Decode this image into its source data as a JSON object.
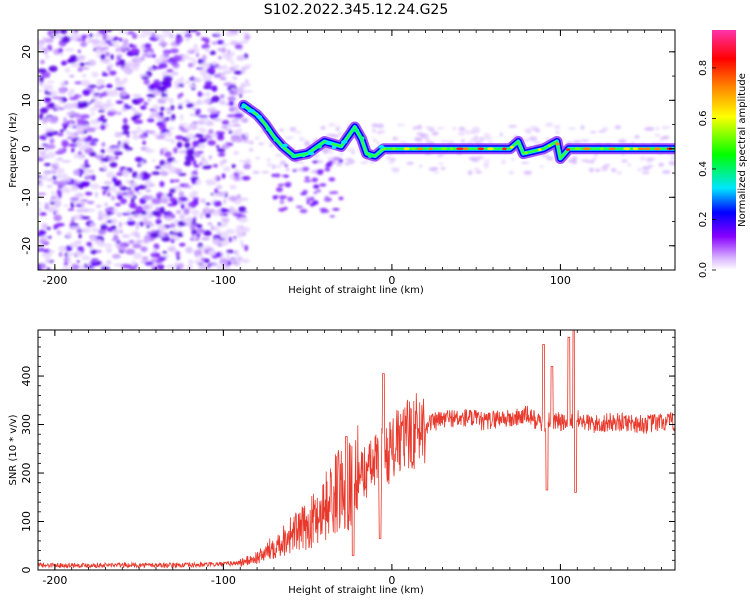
{
  "page": {
    "title": "S102.2022.345.12.24.G25"
  },
  "chart_data": [
    {
      "type": "heatmap",
      "title": "S102.2022.345.12.24.G25",
      "xlabel": "Height of straight line (km)",
      "ylabel": "Frequency (Hz)",
      "xlim": [
        -210,
        168
      ],
      "ylim": [
        -25,
        24.5
      ],
      "xticks": [
        -200,
        -100,
        0,
        100
      ],
      "yticks": [
        -20,
        -10,
        0,
        10,
        20
      ],
      "colorbar": {
        "label": "Normalized spectral amplitude",
        "range": [
          0,
          0.95
        ],
        "ticks": [
          0.0,
          0.2,
          0.4,
          0.6,
          0.8
        ],
        "colors": [
          "#ffffff",
          "#d9b3ff",
          "#8800ff",
          "#0000ff",
          "#00e5ff",
          "#00ff00",
          "#ffff00",
          "#ff8800",
          "#ff0000",
          "#ff33aa"
        ]
      },
      "ridge_frequency_hz": [
        {
          "x": -88,
          "y": 9
        },
        {
          "x": -80,
          "y": 7
        },
        {
          "x": -75,
          "y": 5
        },
        {
          "x": -70,
          "y": 2.5
        },
        {
          "x": -65,
          "y": 0.5
        },
        {
          "x": -58,
          "y": -1.5
        },
        {
          "x": -50,
          "y": -1
        },
        {
          "x": -40,
          "y": 1.5
        },
        {
          "x": -30,
          "y": 0.5
        },
        {
          "x": -22,
          "y": 4.5
        },
        {
          "x": -18,
          "y": 2
        },
        {
          "x": -15,
          "y": -1
        },
        {
          "x": -10,
          "y": -1.5
        },
        {
          "x": -5,
          "y": 0
        },
        {
          "x": 0,
          "y": 0
        },
        {
          "x": 70,
          "y": 0
        },
        {
          "x": 75,
          "y": 1.5
        },
        {
          "x": 78,
          "y": -1
        },
        {
          "x": 90,
          "y": 0
        },
        {
          "x": 98,
          "y": 1.5
        },
        {
          "x": 100,
          "y": -2
        },
        {
          "x": 105,
          "y": 0
        },
        {
          "x": 168,
          "y": 0
        }
      ]
    },
    {
      "type": "line",
      "xlabel": "Height of straight line (km)",
      "ylabel": "SNR (10 * v/v)",
      "xlim": [
        -210,
        168
      ],
      "ylim": [
        0,
        495
      ],
      "xticks": [
        -200,
        -100,
        0,
        100
      ],
      "yticks": [
        0,
        100,
        200,
        300,
        400
      ],
      "color": "#e8392c",
      "series": [
        {
          "x": [
            -210,
            -200,
            -180,
            -160,
            -140,
            -120,
            -100,
            -90,
            -85,
            -80,
            -75,
            -70,
            -65,
            -60,
            -55,
            -50,
            -45,
            -40,
            -35,
            -30,
            -25,
            -20,
            -15,
            -10,
            -5,
            0,
            5,
            10,
            15,
            20,
            25,
            30,
            35,
            40,
            45,
            50,
            55,
            60,
            65,
            70,
            75,
            80,
            85,
            90,
            95,
            100,
            105,
            110,
            115,
            120,
            130,
            140,
            150,
            160,
            168
          ],
          "y": [
            10,
            10,
            10,
            10,
            10,
            10,
            12,
            15,
            20,
            25,
            35,
            50,
            60,
            75,
            80,
            90,
            110,
            130,
            150,
            170,
            180,
            195,
            205,
            220,
            235,
            250,
            265,
            280,
            290,
            300,
            305,
            310,
            315,
            310,
            315,
            310,
            305,
            310,
            315,
            310,
            315,
            320,
            310,
            300,
            310,
            305,
            300,
            310,
            305,
            300,
            305,
            305,
            300,
            305,
            305
          ]
        }
      ],
      "annotations": [
        {
          "x": -27,
          "y": 275
        },
        {
          "x": -23,
          "y": 30
        },
        {
          "x": -5,
          "y": 405
        },
        {
          "x": -7,
          "y": 65
        },
        {
          "x": 90,
          "y": 465
        },
        {
          "x": 92,
          "y": 165
        },
        {
          "x": 95,
          "y": 420
        },
        {
          "x": 108,
          "y": 495
        },
        {
          "x": 109,
          "y": 160
        },
        {
          "x": 105,
          "y": 480
        }
      ]
    }
  ]
}
